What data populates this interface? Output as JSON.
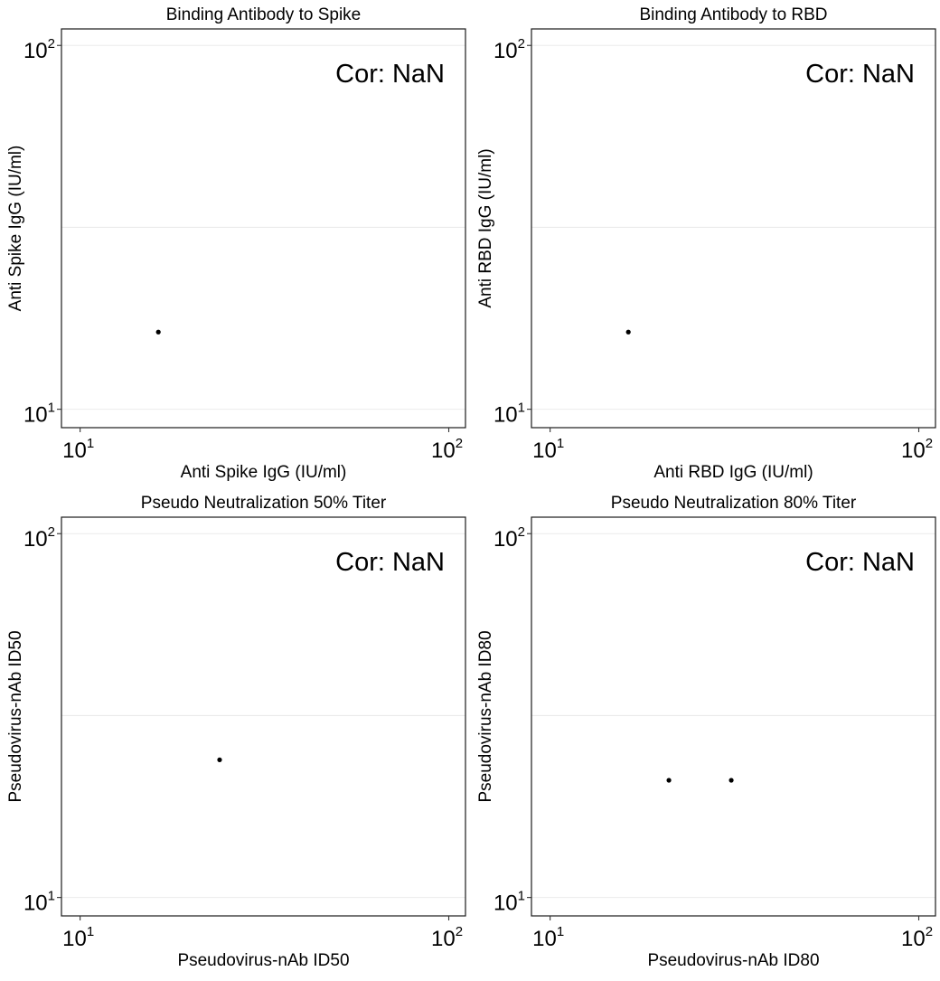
{
  "colors": {
    "point": "#000000",
    "grid": "#ebebeb",
    "frame": "#1a1a1a"
  },
  "chart_data": [
    {
      "type": "scatter",
      "title": "Binding Antibody to Spike",
      "xlabel": "Anti Spike IgG (IU/ml)",
      "ylabel": "Anti Spike IgG (IU/ml)",
      "x_scale": "log10",
      "y_scale": "log10",
      "xlim": [
        8.9,
        111
      ],
      "ylim": [
        8.9,
        111
      ],
      "x_ticks": [
        {
          "base": "10",
          "exp": "1"
        },
        {
          "base": "10",
          "exp": "2"
        }
      ],
      "y_ticks": [
        {
          "base": "10",
          "exp": "1"
        },
        {
          "base": "10",
          "exp": "2"
        }
      ],
      "tick_values": [
        10,
        100
      ],
      "grid": true,
      "annotation": "Cor: NaN",
      "points": [
        {
          "x": 16.3,
          "y": 16.3
        }
      ]
    },
    {
      "type": "scatter",
      "title": "Binding Antibody to RBD",
      "xlabel": "Anti RBD IgG (IU/ml)",
      "ylabel": "Anti RBD IgG (IU/ml)",
      "x_scale": "log10",
      "y_scale": "log10",
      "xlim": [
        8.9,
        111
      ],
      "ylim": [
        8.9,
        111
      ],
      "x_ticks": [
        {
          "base": "10",
          "exp": "1"
        },
        {
          "base": "10",
          "exp": "2"
        }
      ],
      "y_ticks": [
        {
          "base": "10",
          "exp": "1"
        },
        {
          "base": "10",
          "exp": "2"
        }
      ],
      "tick_values": [
        10,
        100
      ],
      "grid": true,
      "annotation": "Cor: NaN",
      "points": [
        {
          "x": 16.3,
          "y": 16.3
        }
      ]
    },
    {
      "type": "scatter",
      "title": "Pseudo Neutralization 50% Titer",
      "xlabel": "Pseudovirus-nAb ID50",
      "ylabel": "Pseudovirus-nAb ID50",
      "x_scale": "log10",
      "y_scale": "log10",
      "xlim": [
        8.9,
        111
      ],
      "ylim": [
        8.9,
        111
      ],
      "x_ticks": [
        {
          "base": "10",
          "exp": "1"
        },
        {
          "base": "10",
          "exp": "2"
        }
      ],
      "y_ticks": [
        {
          "base": "10",
          "exp": "1"
        },
        {
          "base": "10",
          "exp": "2"
        }
      ],
      "tick_values": [
        10,
        100
      ],
      "grid": true,
      "annotation": "Cor: NaN",
      "points": [
        {
          "x": 23.9,
          "y": 23.9
        }
      ]
    },
    {
      "type": "scatter",
      "title": "Pseudo Neutralization 80% Titer",
      "xlabel": "Pseudovirus-nAb ID80",
      "ylabel": "Pseudovirus-nAb ID80",
      "x_scale": "log10",
      "y_scale": "log10",
      "xlim": [
        8.9,
        111
      ],
      "ylim": [
        8.9,
        111
      ],
      "x_ticks": [
        {
          "base": "10",
          "exp": "1"
        },
        {
          "base": "10",
          "exp": "2"
        }
      ],
      "y_ticks": [
        {
          "base": "10",
          "exp": "1"
        },
        {
          "base": "10",
          "exp": "2"
        }
      ],
      "tick_values": [
        10,
        100
      ],
      "grid": true,
      "annotation": "Cor: NaN",
      "points": [
        {
          "x": 21.0,
          "y": 21.0
        },
        {
          "x": 31.0,
          "y": 21.0
        }
      ]
    }
  ]
}
